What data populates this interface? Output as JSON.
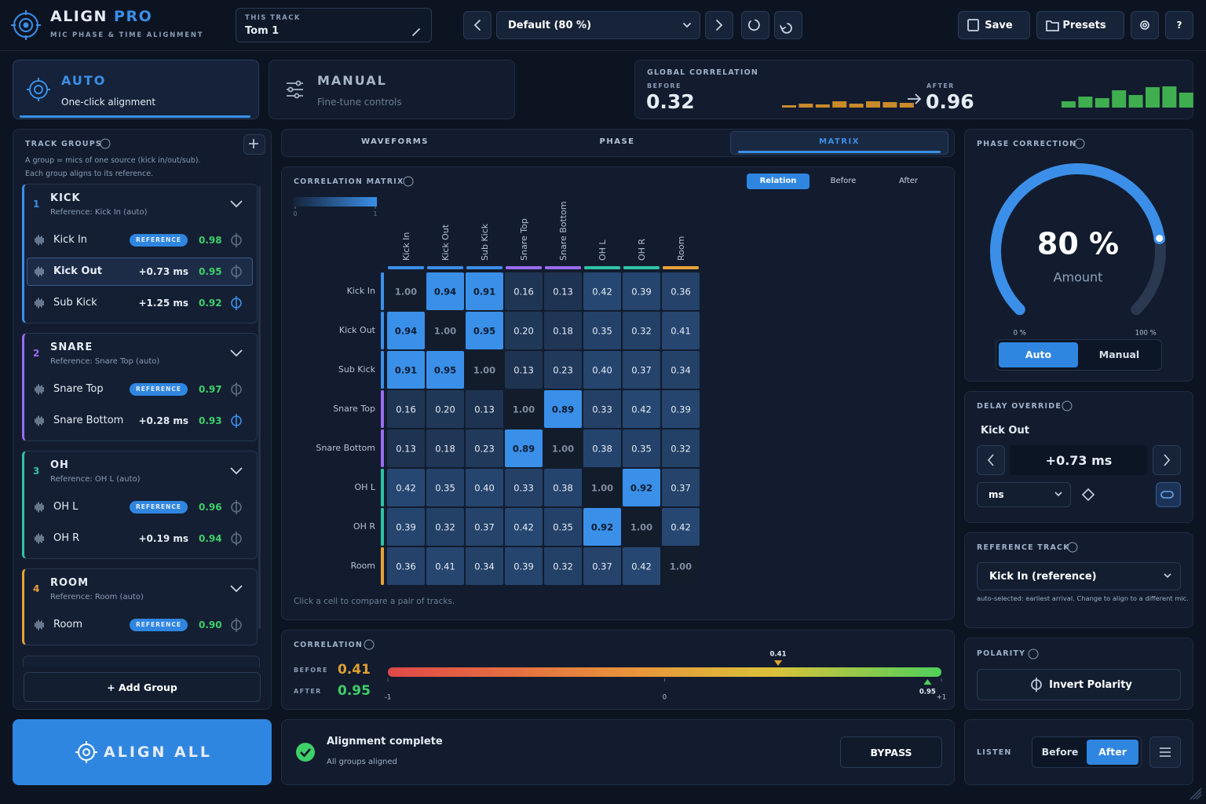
{
  "header": {
    "title": "ALIGN",
    "title_accent": "PRO",
    "subtitle": "MIC PHASE & TIME ALIGNMENT",
    "track_label": "THIS TRACK",
    "track": "Tom 1",
    "preset": "Default (80 %)",
    "save": "Save",
    "presets": "Presets",
    "help": "?"
  },
  "modes": [
    {
      "title": "AUTO",
      "description": "One-click alignment",
      "active": true
    },
    {
      "title": "MANUAL",
      "description": "Fine-tune controls",
      "active": false
    }
  ],
  "global_correlation": {
    "label": "GLOBAL CORRELATION",
    "before_label": "BEFORE",
    "before": 0.32,
    "after_label": "AFTER",
    "after": 0.96,
    "before_bars": [
      3,
      5,
      4,
      8,
      5,
      8,
      7,
      6
    ],
    "after_bars": [
      8,
      14,
      12,
      22,
      16,
      26,
      27,
      19
    ],
    "before_color": "#c98a2a",
    "after_color": "#3fae4f"
  },
  "track_groups": {
    "label": "TRACK GROUPS",
    "help": [
      "A group = mics of one source (kick in/out/sub).",
      "Each group aligns to its reference."
    ],
    "groups": [
      {
        "number": 1,
        "name": "KICK",
        "reference": "Reference: Kick In (auto)",
        "color": "#3b8fe8",
        "tracks": [
          {
            "name": "Kick In",
            "tag": "REFERENCE",
            "correlation": "0.98",
            "inverted": false,
            "selected": false
          },
          {
            "name": "Kick Out",
            "offset": "+0.73 ms",
            "correlation": "0.95",
            "inverted": false,
            "selected": true
          },
          {
            "name": "Sub Kick",
            "offset": "+1.25 ms",
            "correlation": "0.92",
            "inverted": true,
            "selected": false
          }
        ]
      },
      {
        "number": 2,
        "name": "SNARE",
        "reference": "Reference: Snare Top (auto)",
        "color": "#9a6cf0",
        "tracks": [
          {
            "name": "Snare Top",
            "tag": "REFERENCE",
            "correlation": "0.97",
            "inverted": false,
            "selected": false
          },
          {
            "name": "Snare Bottom",
            "offset": "+0.28 ms",
            "correlation": "0.93",
            "inverted": true,
            "selected": false
          }
        ]
      },
      {
        "number": 3,
        "name": "OH",
        "reference": "Reference: OH L (auto)",
        "color": "#2fc4a6",
        "tracks": [
          {
            "name": "OH L",
            "tag": "REFERENCE",
            "correlation": "0.96",
            "inverted": false,
            "selected": false
          },
          {
            "name": "OH R",
            "offset": "+0.19 ms",
            "correlation": "0.94",
            "inverted": false,
            "selected": false
          }
        ]
      },
      {
        "number": 4,
        "name": "ROOM",
        "reference": "Reference: Room (auto)",
        "color": "#e8a23a",
        "tracks": [
          {
            "name": "Room",
            "tag": "REFERENCE",
            "correlation": "0.90",
            "inverted": false,
            "selected": false
          }
        ]
      }
    ],
    "add_group": "+ Add Group"
  },
  "align_all": "ALIGN ALL",
  "tabs": {
    "items": [
      "WAVEFORMS",
      "PHASE",
      "MATRIX"
    ],
    "active": 2
  },
  "matrix": {
    "title": "CORRELATION MATRIX",
    "modes": [
      "Relation",
      "Before",
      "After"
    ],
    "active_mode": 0,
    "scale_ticks": [
      0,
      1
    ],
    "tracks": [
      {
        "name": "Kick In",
        "color": "#3b8fe8"
      },
      {
        "name": "Kick Out",
        "color": "#3b8fe8"
      },
      {
        "name": "Sub Kick",
        "color": "#3b8fe8"
      },
      {
        "name": "Snare Top",
        "color": "#9a6cf0"
      },
      {
        "name": "Snare Bottom",
        "color": "#9a6cf0"
      },
      {
        "name": "OH L",
        "color": "#2fc4a6"
      },
      {
        "name": "OH R",
        "color": "#2fc4a6"
      },
      {
        "name": "Room",
        "color": "#e8a23a"
      }
    ],
    "cells": [
      [
        "1.00",
        "0.94",
        "0.91",
        "0.16",
        "0.13",
        "0.42",
        "0.39",
        "0.36"
      ],
      [
        "0.94",
        "1.00",
        "0.95",
        "0.20",
        "0.18",
        "0.35",
        "0.32",
        "0.41"
      ],
      [
        "0.91",
        "0.95",
        "1.00",
        "0.13",
        "0.23",
        "0.40",
        "0.37",
        "0.34"
      ],
      [
        "0.16",
        "0.20",
        "0.13",
        "1.00",
        "0.89",
        "0.33",
        "0.42",
        "0.39"
      ],
      [
        "0.13",
        "0.18",
        "0.23",
        "0.89",
        "1.00",
        "0.38",
        "0.35",
        "0.32"
      ],
      [
        "0.42",
        "0.35",
        "0.40",
        "0.33",
        "0.38",
        "1.00",
        "0.92",
        "0.37"
      ],
      [
        "0.39",
        "0.32",
        "0.37",
        "0.42",
        "0.35",
        "0.92",
        "1.00",
        "0.42"
      ],
      [
        "0.36",
        "0.41",
        "0.34",
        "0.39",
        "0.32",
        "0.37",
        "0.42",
        "1.00"
      ]
    ],
    "footer": "Click a cell to compare a pair of tracks."
  },
  "correlation": {
    "title": "CORRELATION",
    "before_label": "BEFORE",
    "before": 0.41,
    "after_label": "AFTER",
    "after": 0.95,
    "xlim": [
      -1,
      1
    ],
    "xticks": [
      {
        "value": -1,
        "label": "-1"
      },
      0,
      {
        "value": 1,
        "label": "+1"
      }
    ]
  },
  "status": {
    "title": "Alignment complete",
    "detail": "All groups aligned",
    "bypass": "BYPASS"
  },
  "phase_correction": {
    "title": "PHASE CORRECTION",
    "value": 80,
    "value_label": "80 %",
    "caption": "Amount",
    "ticks": [
      {
        "value": 0,
        "label": "0 %"
      },
      {
        "value": 100,
        "label": "100 %"
      }
    ],
    "modes": [
      "Auto",
      "Manual"
    ],
    "active_mode": 0
  },
  "delay_override": {
    "title": "DELAY OVERRIDE",
    "track": "Kick Out",
    "value": "+0.73 ms",
    "unit": "ms"
  },
  "reference_track": {
    "title": "REFERENCE TRACK",
    "selected": "Kick In (reference)",
    "note": "auto-selected: earliest arrival. Change to align to a different mic."
  },
  "polarity": {
    "title": "POLARITY",
    "button": "Invert Polarity"
  },
  "listen": {
    "label": "LISTEN",
    "options": [
      "Before",
      "After"
    ],
    "active": 1
  }
}
